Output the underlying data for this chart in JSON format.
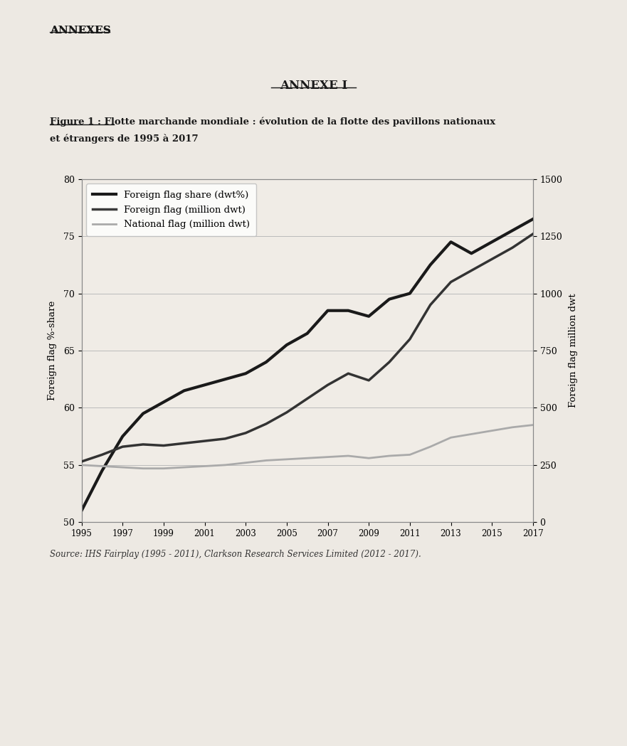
{
  "years": [
    1995,
    1996,
    1997,
    1998,
    1999,
    2000,
    2001,
    2002,
    2003,
    2004,
    2005,
    2006,
    2007,
    2008,
    2009,
    2010,
    2011,
    2012,
    2013,
    2014,
    2015,
    2016,
    2017
  ],
  "foreign_flag_share": [
    51.0,
    54.5,
    57.5,
    59.5,
    60.5,
    61.5,
    62.0,
    62.5,
    63.0,
    64.0,
    65.5,
    66.5,
    68.5,
    68.5,
    68.0,
    69.5,
    70.0,
    72.5,
    74.5,
    73.5,
    74.5,
    75.5,
    76.5
  ],
  "foreign_flag_dwt": [
    265,
    295,
    330,
    340,
    335,
    345,
    355,
    365,
    390,
    430,
    480,
    540,
    600,
    650,
    620,
    700,
    800,
    950,
    1050,
    1100,
    1150,
    1200,
    1260
  ],
  "national_flag_dwt": [
    250,
    245,
    240,
    235,
    235,
    240,
    245,
    250,
    260,
    270,
    275,
    280,
    285,
    290,
    280,
    290,
    295,
    330,
    370,
    385,
    400,
    415,
    425
  ],
  "left_ylabel": "Foreign flag %-share",
  "right_ylabel": "Foreign flag million dwt",
  "left_ylim": [
    50,
    80
  ],
  "left_yticks": [
    50,
    55,
    60,
    65,
    70,
    75,
    80
  ],
  "right_ylim": [
    0,
    1500
  ],
  "right_yticks": [
    0,
    250,
    500,
    750,
    1000,
    1250,
    1500
  ],
  "legend_labels": [
    "Foreign flag share (dwt%)",
    "Foreign flag (million dwt)",
    "National flag (million dwt)"
  ],
  "legend_colors": [
    "#1a1a1a",
    "#3a3a3a",
    "#aaaaaa"
  ],
  "legend_linewidths": [
    3.0,
    2.5,
    2.0
  ],
  "source_text": "Source: IHS Fairplay (1995 - 2011), Clarkson Research Services Limited (2012 - 2017).",
  "annexes_text": "ANNEXES",
  "annexe_i_text": "ANNEXE I",
  "figure_title_line1": "Figure 1 : Flotte marchande mondiale : évolution de la flotte des pavillons nationaux",
  "figure_title_line2": "et étrangers de 1995 à 2017",
  "bg_color": "#ede9e3",
  "plot_bg_color": "#f0ece6"
}
